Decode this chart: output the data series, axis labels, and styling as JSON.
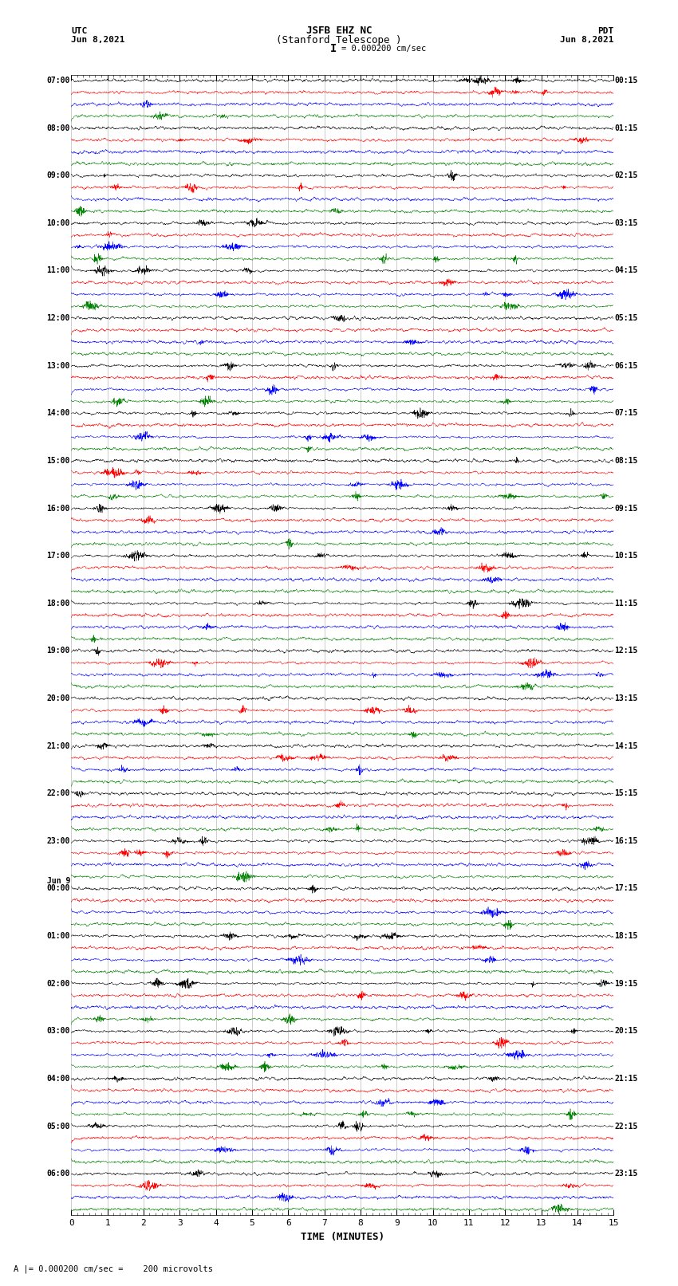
{
  "title_line1": "JSFB EHZ NC",
  "title_line2": "(Stanford Telescope )",
  "scale_text": "I = 0.000200 cm/sec",
  "label_utc": "UTC",
  "label_pdt": "PDT",
  "date_left": "Jun 8,2021",
  "date_right": "Jun 8,2021",
  "xlabel": "TIME (MINUTES)",
  "footer_text": "A |= 0.000200 cm/sec =    200 microvolts",
  "utc_labels": [
    [
      "07:00",
      0
    ],
    [
      "08:00",
      4
    ],
    [
      "09:00",
      8
    ],
    [
      "10:00",
      12
    ],
    [
      "11:00",
      16
    ],
    [
      "12:00",
      20
    ],
    [
      "13:00",
      24
    ],
    [
      "14:00",
      28
    ],
    [
      "15:00",
      32
    ],
    [
      "16:00",
      36
    ],
    [
      "17:00",
      40
    ],
    [
      "18:00",
      44
    ],
    [
      "19:00",
      48
    ],
    [
      "20:00",
      52
    ],
    [
      "21:00",
      56
    ],
    [
      "22:00",
      60
    ],
    [
      "23:00",
      64
    ],
    [
      "Jun 9",
      68
    ],
    [
      "00:00",
      68
    ],
    [
      "01:00",
      72
    ],
    [
      "02:00",
      76
    ],
    [
      "03:00",
      80
    ],
    [
      "04:00",
      84
    ],
    [
      "05:00",
      88
    ],
    [
      "06:00",
      92
    ]
  ],
  "pdt_labels": [
    [
      "00:15",
      0
    ],
    [
      "01:15",
      4
    ],
    [
      "02:15",
      8
    ],
    [
      "03:15",
      12
    ],
    [
      "04:15",
      16
    ],
    [
      "05:15",
      20
    ],
    [
      "06:15",
      24
    ],
    [
      "07:15",
      28
    ],
    [
      "08:15",
      32
    ],
    [
      "09:15",
      36
    ],
    [
      "10:15",
      40
    ],
    [
      "11:15",
      44
    ],
    [
      "12:15",
      48
    ],
    [
      "13:15",
      52
    ],
    [
      "14:15",
      56
    ],
    [
      "15:15",
      60
    ],
    [
      "16:15",
      64
    ],
    [
      "17:15",
      68
    ],
    [
      "18:15",
      72
    ],
    [
      "19:15",
      76
    ],
    [
      "20:15",
      80
    ],
    [
      "21:15",
      84
    ],
    [
      "22:15",
      88
    ],
    [
      "23:15",
      92
    ]
  ],
  "num_rows": 96,
  "colors_cycle": [
    "black",
    "red",
    "blue",
    "green"
  ],
  "xmin": 0,
  "xmax": 15,
  "figwidth": 8.5,
  "figheight": 16.13,
  "bg_color": "white",
  "seed": 42
}
